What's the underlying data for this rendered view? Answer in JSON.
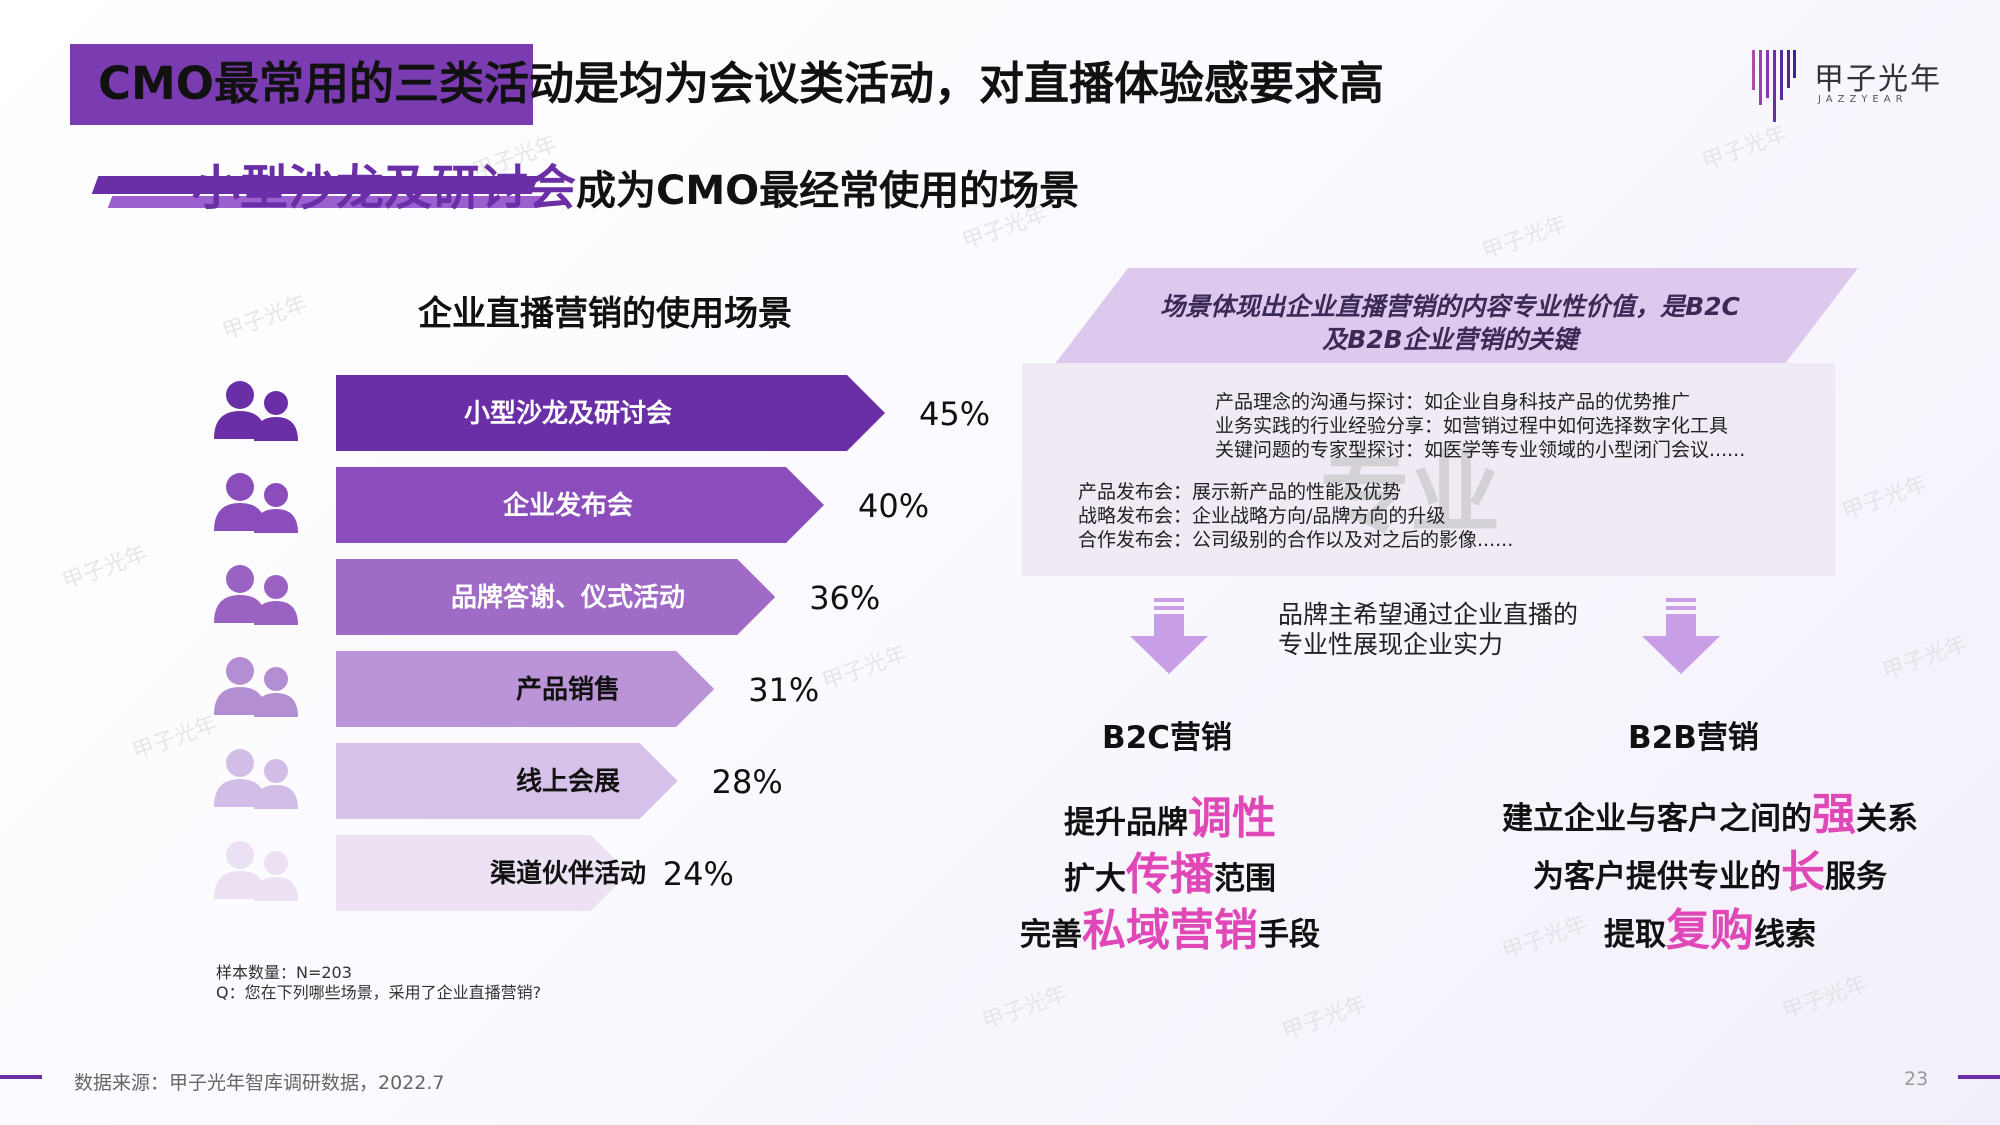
{
  "header": {
    "title": "CMO最常用的三类活动是均为会议类活动，对直播体验感要求高",
    "subtitle_highlight": "小型沙龙及研讨会",
    "subtitle_rest": "成为CMO最经常使用的场景"
  },
  "logo": {
    "name_cn": "甲子光年",
    "name_en": "JAZZYEAR"
  },
  "chart_data": {
    "type": "bar",
    "orientation": "horizontal",
    "title": "企业直播营销的使用场景",
    "categories": [
      "小型沙龙及研讨会",
      "企业发布会",
      "品牌答谢、仪式活动",
      "产品销售",
      "线上会展",
      "渠道伙伴活动"
    ],
    "values": [
      45,
      40,
      36,
      31,
      28,
      24
    ],
    "value_labels": [
      "45%",
      "40%",
      "36%",
      "31%",
      "28%",
      "24%"
    ],
    "unit": "%",
    "colors": [
      "#6a2ea6",
      "#8a4dbb",
      "#a06ac7",
      "#bb94d7",
      "#d6c1e8",
      "#ece2f4"
    ],
    "label_colors": [
      "#ffffff",
      "#ffffff",
      "#ffffff",
      "#111111",
      "#111111",
      "#111111"
    ]
  },
  "right_panel": {
    "parallelogram_text": [
      "场景体现出企业直播营销的内容专业性价值，是B2C",
      "及B2B企业营销的关键"
    ],
    "watermark": "专业",
    "group_a": [
      "产品理念的沟通与探讨：如企业自身科技产品的优势推广",
      "业务实践的行业经验分享：如营销过程中如何选择数字化工具",
      "关键问题的专家型探讨：如医学等专业领域的小型闭门会议......"
    ],
    "group_b": [
      "产品发布会：展示新产品的性能及优势",
      "战略发布会：企业战略方向/品牌方向的升级",
      "合作发布会：公司级别的合作以及对之后的影像......"
    ],
    "middle_text": [
      "品牌主希望通过企业直播的",
      "专业性展现企业实力"
    ],
    "b2c": {
      "heading": "B2C营销",
      "lines": [
        {
          "pre": "提升品牌",
          "hl": "调性",
          "post": ""
        },
        {
          "pre": "扩大",
          "hl": "传播",
          "post": "范围"
        },
        {
          "pre": "完善",
          "hl": "私域营销",
          "post": "手段"
        }
      ]
    },
    "b2b": {
      "heading": "B2B营销",
      "lines": [
        {
          "pre": "建立企业与客户之间的",
          "hl": "强",
          "post": "关系"
        },
        {
          "pre": "为客户提供专业的",
          "hl": "长",
          "post": "服务"
        },
        {
          "pre": "提取",
          "hl": "复购",
          "post": "线索"
        }
      ]
    }
  },
  "footer": {
    "sample": "样本数量：N=203",
    "question": "Q：您在下列哪些场景，采用了企业直播营销?",
    "source": "数据来源：甲子光年智库调研数据，2022.7",
    "page_number": "23"
  },
  "colors": {
    "primary": "#6a2ea6",
    "highlight_pink": "#e048b8",
    "arrow": "#c89ee6"
  }
}
